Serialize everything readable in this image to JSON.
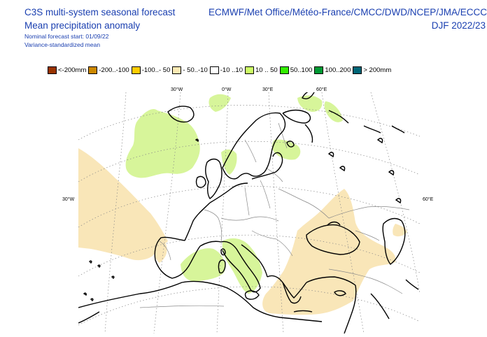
{
  "header": {
    "title_line1": "C3S multi-system seasonal forecast",
    "title_line2": "Mean precipitation anomaly",
    "start": "Nominal forecast start: 01/09/22",
    "method": "Variance-standardized mean",
    "systems": "ECMWF/Met Office/Météo-France/CMCC/DWD/NCEP/JMA/ECCC",
    "period": "DJF 2022/23"
  },
  "legend": [
    {
      "label": "<-200mm",
      "color": "#993300"
    },
    {
      "label": "-200..-100",
      "color": "#cc8800"
    },
    {
      "label": "-100..- 50",
      "color": "#ffcc00"
    },
    {
      "label": "- 50..-10",
      "color": "#fbe9b4"
    },
    {
      "label": "-10 ..10",
      "color": "#ffffff"
    },
    {
      "label": "10 .. 50",
      "color": "#ccff66"
    },
    {
      "label": "50..100",
      "color": "#33ee00"
    },
    {
      "label": "100..200",
      "color": "#009933"
    },
    {
      "label": "> 200mm",
      "color": "#006677"
    }
  ],
  "graticule": {
    "lon_labels": [
      "30°W",
      "0°W",
      "30°E",
      "60°E"
    ],
    "lat_left": "30°W",
    "lat_right": "60°E"
  },
  "colors": {
    "positive_anomaly": "#d7f59a",
    "negative_anomaly": "#f9e6b8",
    "coast": "#000000",
    "border": "#888888",
    "grid": "#888888"
  }
}
